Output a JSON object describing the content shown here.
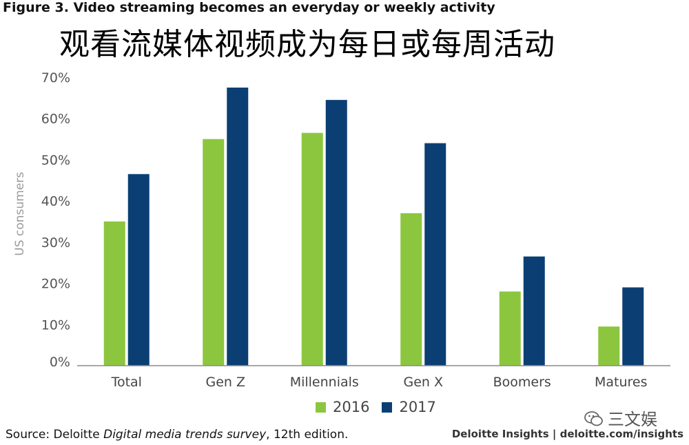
{
  "figure_title": "Figure 3. Video streaming becomes an everyday or weekly activity",
  "chinese_title": "观看流媒体视频成为每日或每周活动",
  "source": {
    "prefix": "Source: Deloitte ",
    "italic": "Digital media trends survey",
    "suffix": ", 12th edition."
  },
  "credit": "Deloitte Insights | deloitte.com/insights",
  "watermark": {
    "text": "三文娱",
    "icon": "wechat-icon"
  },
  "colors": {
    "2016": "#8cc63f",
    "2017": "#0b3f73",
    "axis": "#8a8a8a"
  },
  "chart_data": {
    "type": "bar",
    "title": "Video streaming becomes an everyday or weekly activity",
    "ylabel": "US consumers",
    "xlabel": "",
    "categories": [
      "Total",
      "Gen Z",
      "Millennials",
      "Gen X",
      "Boomers",
      "Matures"
    ],
    "series": [
      {
        "name": "2016",
        "values": [
          35,
          55,
          56.5,
          37,
          18,
          9.5
        ]
      },
      {
        "name": "2017",
        "values": [
          46.5,
          67.5,
          64.5,
          54,
          26.5,
          19
        ]
      }
    ],
    "ylim": [
      0,
      70
    ],
    "yticks": [
      0,
      10,
      20,
      30,
      40,
      50,
      60,
      70
    ],
    "ytick_labels": [
      "0%",
      "10%",
      "20%",
      "30%",
      "40%",
      "50%",
      "60%",
      "70%"
    ],
    "grid": false,
    "legend_position": "bottom-center"
  }
}
